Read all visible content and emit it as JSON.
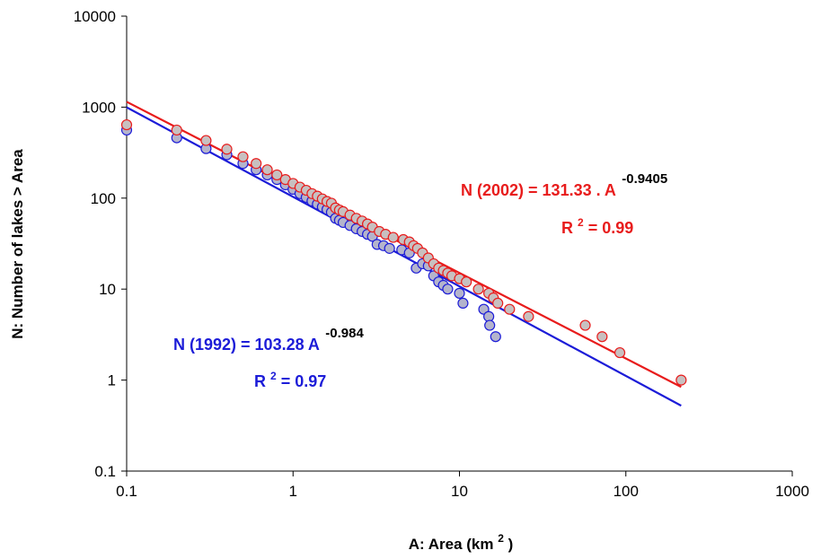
{
  "chart_data": {
    "type": "scatter",
    "x_scale": "log",
    "y_scale": "log",
    "xlim": [
      0.1,
      1000
    ],
    "ylim": [
      0.1,
      10000
    ],
    "x_ticks": [
      "0.1",
      "1",
      "10",
      "100",
      "1000"
    ],
    "y_ticks": [
      "0.1",
      "1",
      "10",
      "100",
      "1000",
      "10000"
    ],
    "xlabel": "A: Area (km",
    "xlabel_sup": "2",
    "xlabel_end": ")",
    "ylabel": "N: Number of lakes > Area",
    "grid": false,
    "series": [
      {
        "name": "1992",
        "color": "#1c1cd8",
        "marker_fill": "#b4b4cc",
        "points": [
          [
            0.1,
            560
          ],
          [
            0.2,
            460
          ],
          [
            0.3,
            350
          ],
          [
            0.4,
            300
          ],
          [
            0.5,
            240
          ],
          [
            0.6,
            205
          ],
          [
            0.7,
            180
          ],
          [
            0.8,
            160
          ],
          [
            0.9,
            140
          ],
          [
            1.0,
            125
          ],
          [
            1.1,
            112
          ],
          [
            1.2,
            102
          ],
          [
            1.3,
            93
          ],
          [
            1.4,
            86
          ],
          [
            1.5,
            80
          ],
          [
            1.6,
            75
          ],
          [
            1.7,
            70
          ],
          [
            1.8,
            60
          ],
          [
            1.9,
            57
          ],
          [
            2.0,
            54
          ],
          [
            2.2,
            50
          ],
          [
            2.4,
            46
          ],
          [
            2.6,
            43
          ],
          [
            2.8,
            40
          ],
          [
            3.0,
            38
          ],
          [
            3.2,
            31
          ],
          [
            3.5,
            30
          ],
          [
            3.8,
            28
          ],
          [
            4.5,
            27
          ],
          [
            5.0,
            25
          ],
          [
            5.5,
            17
          ],
          [
            6.0,
            19
          ],
          [
            6.5,
            18
          ],
          [
            7.0,
            14
          ],
          [
            7.5,
            12
          ],
          [
            8.0,
            11
          ],
          [
            8.5,
            10
          ],
          [
            10.0,
            9
          ],
          [
            10.5,
            7
          ],
          [
            14.0,
            6
          ],
          [
            15.0,
            5
          ],
          [
            15.2,
            4
          ],
          [
            16.5,
            3
          ]
        ],
        "fit_a": 103.28,
        "fit_b": -0.984,
        "fit_range": [
          0.1,
          215
        ],
        "equation": "N (1992) = 103.28 A",
        "exponent_label": "-0.984",
        "r2_prefix": "R",
        "r2_sup": "2",
        "r2_value": " = 0.97"
      },
      {
        "name": "2002",
        "color": "#e81c1c",
        "marker_fill": "#c8c0c0",
        "points": [
          [
            0.1,
            640
          ],
          [
            0.2,
            560
          ],
          [
            0.3,
            430
          ],
          [
            0.4,
            345
          ],
          [
            0.5,
            285
          ],
          [
            0.6,
            240
          ],
          [
            0.7,
            205
          ],
          [
            0.8,
            180
          ],
          [
            0.9,
            160
          ],
          [
            1.0,
            145
          ],
          [
            1.1,
            132
          ],
          [
            1.2,
            122
          ],
          [
            1.3,
            112
          ],
          [
            1.4,
            105
          ],
          [
            1.5,
            98
          ],
          [
            1.6,
            92
          ],
          [
            1.7,
            88
          ],
          [
            1.8,
            78
          ],
          [
            1.9,
            74
          ],
          [
            2.0,
            71
          ],
          [
            2.2,
            65
          ],
          [
            2.4,
            60
          ],
          [
            2.6,
            56
          ],
          [
            2.8,
            52
          ],
          [
            3.0,
            48
          ],
          [
            3.3,
            43
          ],
          [
            3.6,
            40
          ],
          [
            4.0,
            37
          ],
          [
            4.6,
            35
          ],
          [
            5.0,
            33
          ],
          [
            5.3,
            30
          ],
          [
            5.6,
            28
          ],
          [
            6.0,
            25
          ],
          [
            6.5,
            22
          ],
          [
            7.0,
            19
          ],
          [
            7.5,
            17
          ],
          [
            8.0,
            16
          ],
          [
            8.5,
            15
          ],
          [
            9.0,
            14
          ],
          [
            10.0,
            13
          ],
          [
            11.0,
            12
          ],
          [
            13.0,
            10
          ],
          [
            15.0,
            9
          ],
          [
            16.0,
            8
          ],
          [
            17.0,
            7
          ],
          [
            20.0,
            6
          ],
          [
            26.0,
            5
          ],
          [
            57.0,
            4
          ],
          [
            72.0,
            3
          ],
          [
            92.0,
            2
          ],
          [
            215.0,
            1
          ]
        ],
        "fit_a": 131.33,
        "fit_b": -0.9405,
        "fit_range": [
          0.1,
          215
        ],
        "equation": "N (2002)  = 131.33 . A",
        "exponent_label": "-0.9405",
        "r2_prefix": "R",
        "r2_sup": "2",
        "r2_value": " = 0.99"
      }
    ]
  }
}
